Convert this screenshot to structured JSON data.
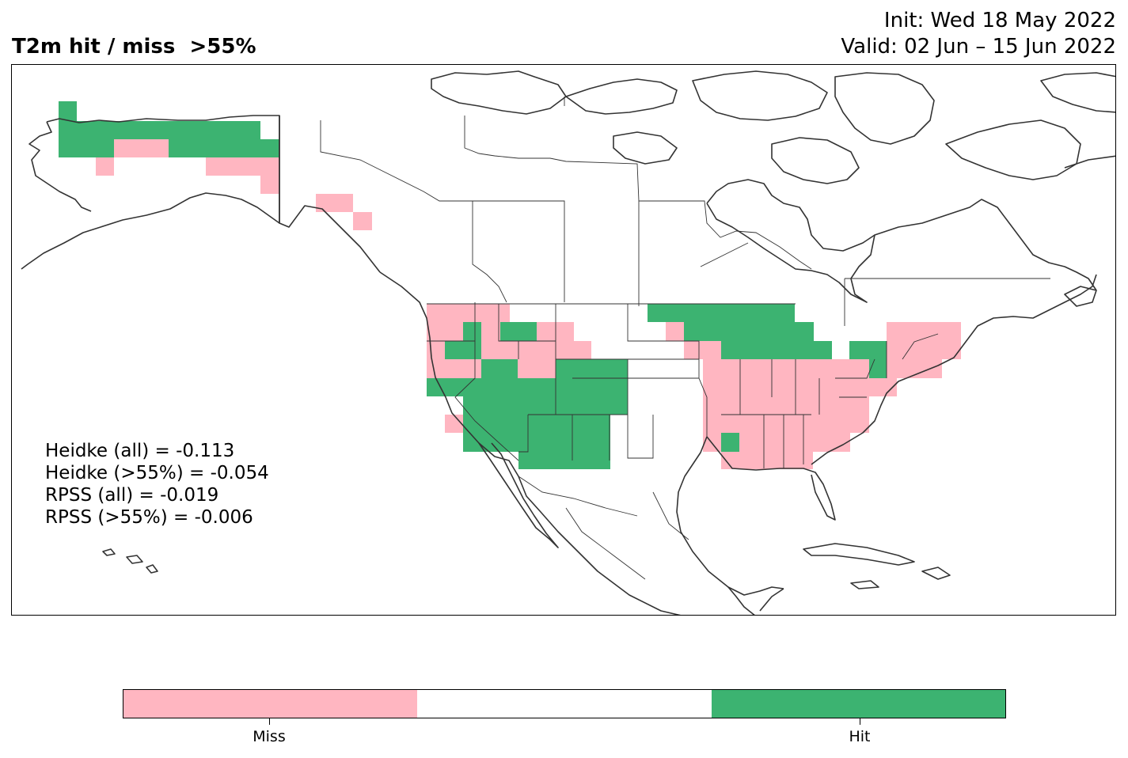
{
  "title": {
    "left": "T2m hit / miss  >55%",
    "init": "Init: Wed 18 May 2022",
    "valid": "Valid: 02 Jun – 15 Jun 2022"
  },
  "colors": {
    "miss": "#ffb6c1",
    "neutral": "#ffffff",
    "hit": "#3cb371",
    "outline": "#333333"
  },
  "stats": {
    "heidke_all": "Heidke (all) = -0.113",
    "heidke_55": "Heidke (>55%) = -0.054",
    "rpss_all": "RPSS (all) = -0.019",
    "rpss_55": "RPSS (>55%) = -0.006"
  },
  "colorbar": {
    "segments": [
      "miss",
      "neutral",
      "hit"
    ],
    "labels": [
      "Miss",
      "Hit"
    ]
  }
}
